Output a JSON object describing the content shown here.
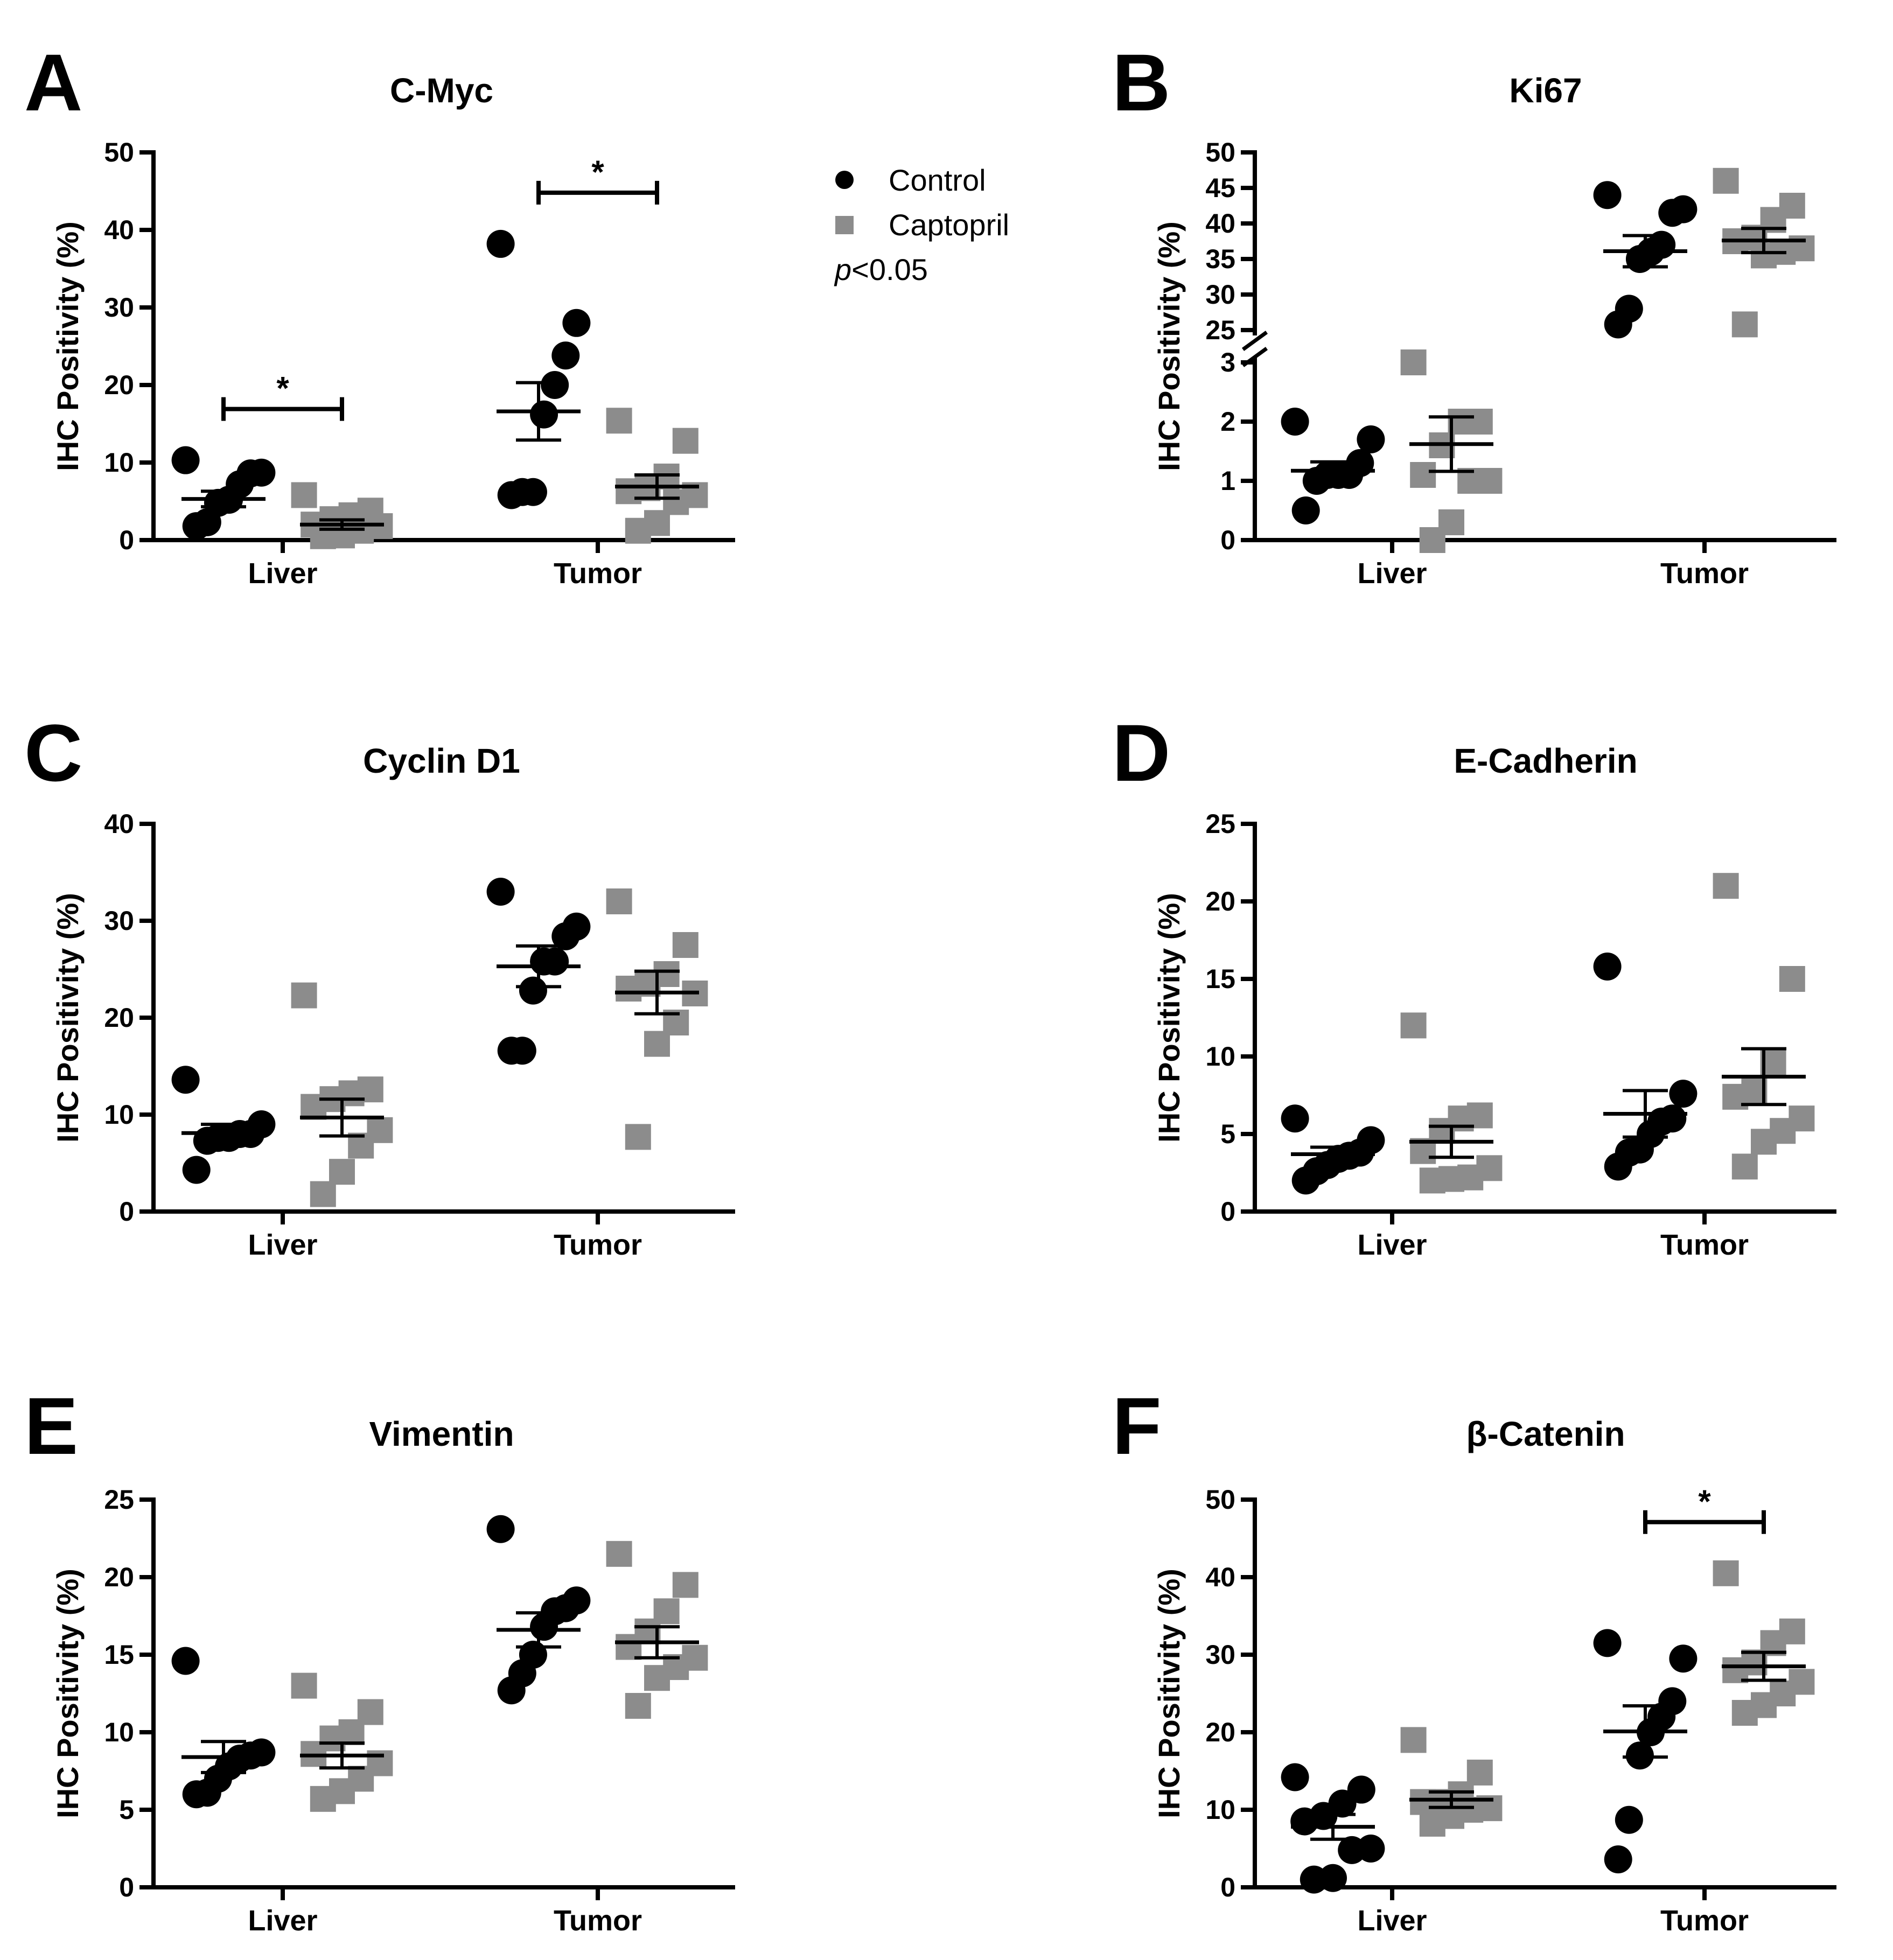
{
  "figure": {
    "legend_entries": [
      "Control",
      "Captopril"
    ],
    "significance_note": "p<0.05"
  },
  "legend": {
    "control": "Control",
    "captopril": "Captopril",
    "p_italic": "p",
    "p_rest": "<0.05"
  },
  "colors": {
    "control": "#000000",
    "captopril": "#8c8c8c"
  },
  "chart_data": [
    {
      "panel": "A",
      "title": "C-Myc",
      "type": "scatter",
      "ylabel": "IHC Positivity (%)",
      "categories": [
        "Liver",
        "Tumor"
      ],
      "ylim": [
        0,
        50
      ],
      "yticks": [
        0,
        10,
        20,
        30,
        40,
        50
      ],
      "series": [
        {
          "name": "Control",
          "marker": "circle",
          "groups": [
            {
              "category": "Liver",
              "values": [
                10.3,
                8.7,
                8.6,
                7.2,
                5.2,
                4.8,
                2.3,
                1.8
              ],
              "mean": 5.3,
              "sem": 1.0
            },
            {
              "category": "Tumor",
              "values": [
                38.2,
                28.0,
                23.8,
                20.0,
                16.2,
                6.2,
                6.2,
                5.8
              ],
              "mean": 16.6,
              "sem": 3.7
            }
          ]
        },
        {
          "name": "Captopril",
          "marker": "square",
          "groups": [
            {
              "category": "Liver",
              "values": [
                5.8,
                3.8,
                3.2,
                2.7,
                2.0,
                1.8,
                1.2,
                0.6,
                0.5
              ],
              "mean": 2.0,
              "sem": 0.6
            },
            {
              "category": "Tumor",
              "values": [
                15.4,
                12.8,
                8.2,
                6.7,
                6.3,
                5.8,
                4.9,
                2.2,
                1.2
              ],
              "mean": 6.9,
              "sem": 1.5
            }
          ]
        }
      ],
      "significance": [
        {
          "category": "Liver",
          "label": "*"
        },
        {
          "category": "Tumor",
          "label": "*"
        }
      ]
    },
    {
      "panel": "B",
      "title": "Ki67",
      "type": "scatter",
      "ylabel": "IHC Positivity (%)",
      "categories": [
        "Liver",
        "Tumor"
      ],
      "broken_axis": {
        "lower": [
          0,
          3
        ],
        "upper": [
          25,
          50
        ]
      },
      "yticks_lower": [
        0,
        1,
        2,
        3
      ],
      "yticks_upper": [
        25,
        30,
        35,
        40,
        45,
        50
      ],
      "series": [
        {
          "name": "Control",
          "marker": "circle",
          "groups": [
            {
              "category": "Liver",
              "values": [
                2.0,
                1.7,
                1.3,
                1.1,
                1.1,
                1.1,
                1.0,
                0.5
              ],
              "mean": 1.17,
              "sem": 0.15
            },
            {
              "category": "Tumor",
              "values": [
                44.0,
                42.0,
                41.5,
                37.0,
                36.0,
                35.0,
                28.0,
                25.8
              ],
              "mean": 36.1,
              "sem": 2.2
            }
          ]
        },
        {
          "name": "Captopril",
          "marker": "square",
          "groups": [
            {
              "category": "Liver",
              "values": [
                3.0,
                2.0,
                2.0,
                1.6,
                1.1,
                1.0,
                1.0,
                0.3,
                0.0
              ],
              "mean": 1.62,
              "sem": 0.46
            },
            {
              "category": "Tumor",
              "values": [
                46.0,
                42.5,
                40.5,
                38.0,
                37.5,
                36.5,
                36.0,
                35.5,
                25.8
              ],
              "mean": 37.6,
              "sem": 1.7
            }
          ]
        }
      ],
      "significance": []
    },
    {
      "panel": "C",
      "title": "Cyclin D1",
      "type": "scatter",
      "ylabel": "IHC Positivity (%)",
      "categories": [
        "Liver",
        "Tumor"
      ],
      "ylim": [
        0,
        40
      ],
      "yticks": [
        0,
        10,
        20,
        30,
        40
      ],
      "series": [
        {
          "name": "Control",
          "marker": "circle",
          "groups": [
            {
              "category": "Liver",
              "values": [
                13.6,
                9.0,
                8.0,
                8.0,
                7.6,
                7.6,
                7.3,
                4.3
              ],
              "mean": 8.1,
              "sem": 0.9
            },
            {
              "category": "Tumor",
              "values": [
                33.0,
                29.4,
                28.4,
                25.8,
                25.8,
                22.8,
                16.6,
                16.6
              ],
              "mean": 25.3,
              "sem": 2.1
            }
          ]
        },
        {
          "name": "Captopril",
          "marker": "square",
          "groups": [
            {
              "category": "Liver",
              "values": [
                22.3,
                12.6,
                12.2,
                11.6,
                10.8,
                8.4,
                6.8,
                4.1,
                1.8
              ],
              "mean": 9.7,
              "sem": 1.9
            },
            {
              "category": "Tumor",
              "values": [
                32.0,
                27.5,
                24.5,
                23.5,
                23.0,
                22.5,
                19.5,
                17.3,
                7.7
              ],
              "mean": 22.6,
              "sem": 2.2
            }
          ]
        }
      ],
      "significance": []
    },
    {
      "panel": "D",
      "title": "E-Cadherin",
      "type": "scatter",
      "ylabel": "IHC Positivity (%)",
      "categories": [
        "Liver",
        "Tumor"
      ],
      "ylim": [
        0,
        25
      ],
      "yticks": [
        0,
        5,
        10,
        15,
        20,
        25
      ],
      "series": [
        {
          "name": "Control",
          "marker": "circle",
          "groups": [
            {
              "category": "Liver",
              "values": [
                6.0,
                4.6,
                3.8,
                3.6,
                3.4,
                3.0,
                2.6,
                2.0
              ],
              "mean": 3.7,
              "sem": 0.45
            },
            {
              "category": "Tumor",
              "values": [
                15.8,
                7.6,
                6.0,
                5.8,
                5.0,
                4.0,
                3.8,
                2.9
              ],
              "mean": 6.3,
              "sem": 1.5
            }
          ]
        },
        {
          "name": "Captopril",
          "marker": "square",
          "groups": [
            {
              "category": "Liver",
              "values": [
                12.0,
                6.2,
                6.0,
                5.2,
                3.9,
                2.8,
                2.2,
                2.1,
                2.0
              ],
              "mean": 4.5,
              "sem": 1.0
            },
            {
              "category": "Tumor",
              "values": [
                21.0,
                15.0,
                9.6,
                7.8,
                7.4,
                6.0,
                5.2,
                4.5,
                2.9
              ],
              "mean": 8.7,
              "sem": 1.8
            }
          ]
        }
      ],
      "significance": []
    },
    {
      "panel": "E",
      "title": "Vimentin",
      "type": "scatter",
      "ylabel": "IHC Positivity (%)",
      "categories": [
        "Liver",
        "Tumor"
      ],
      "ylim": [
        0,
        25
      ],
      "yticks": [
        0,
        5,
        10,
        15,
        20,
        25
      ],
      "series": [
        {
          "name": "Control",
          "marker": "circle",
          "groups": [
            {
              "category": "Liver",
              "values": [
                14.6,
                8.7,
                8.5,
                8.3,
                7.8,
                7.0,
                6.1,
                6.0
              ],
              "mean": 8.4,
              "sem": 1.0
            },
            {
              "category": "Tumor",
              "values": [
                23.1,
                18.5,
                18.0,
                17.8,
                16.8,
                15.0,
                13.8,
                12.7
              ],
              "mean": 16.6,
              "sem": 1.1
            }
          ]
        },
        {
          "name": "Captopril",
          "marker": "square",
          "groups": [
            {
              "category": "Liver",
              "values": [
                13.0,
                11.3,
                10.0,
                9.6,
                8.6,
                8.0,
                7.0,
                6.2,
                5.7
              ],
              "mean": 8.5,
              "sem": 0.8
            },
            {
              "category": "Tumor",
              "values": [
                21.5,
                19.5,
                17.8,
                16.5,
                15.5,
                14.8,
                14.2,
                13.5,
                11.7
              ],
              "mean": 15.8,
              "sem": 1.0
            }
          ]
        }
      ],
      "significance": []
    },
    {
      "panel": "F",
      "title": "β-Catenin",
      "type": "scatter",
      "ylabel": "IHC Positivity (%)",
      "categories": [
        "Liver",
        "Tumor"
      ],
      "ylim": [
        0,
        50
      ],
      "yticks": [
        0,
        10,
        20,
        30,
        40,
        50
      ],
      "series": [
        {
          "name": "Control",
          "marker": "circle",
          "groups": [
            {
              "category": "Liver",
              "values": [
                14.2,
                12.6,
                10.8,
                9.2,
                8.5,
                5.0,
                4.8,
                1.2,
                1.0
              ],
              "mean": 7.8,
              "sem": 1.6
            },
            {
              "category": "Tumor",
              "values": [
                31.5,
                29.5,
                24.0,
                22.0,
                20.0,
                17.0,
                8.7,
                3.6
              ],
              "mean": 20.1,
              "sem": 3.3
            }
          ]
        },
        {
          "name": "Captopril",
          "marker": "square",
          "groups": [
            {
              "category": "Liver",
              "values": [
                19.0,
                14.8,
                12.0,
                11.0,
                11.0,
                10.2,
                10.0,
                9.2,
                8.2
              ],
              "mean": 11.3,
              "sem": 1.0
            },
            {
              "category": "Tumor",
              "values": [
                40.5,
                33.0,
                31.5,
                29.0,
                28.0,
                26.5,
                25.0,
                23.5,
                22.5
              ],
              "mean": 28.5,
              "sem": 1.8
            }
          ]
        }
      ],
      "significance": [
        {
          "category": "Tumor",
          "label": "*"
        }
      ]
    }
  ]
}
